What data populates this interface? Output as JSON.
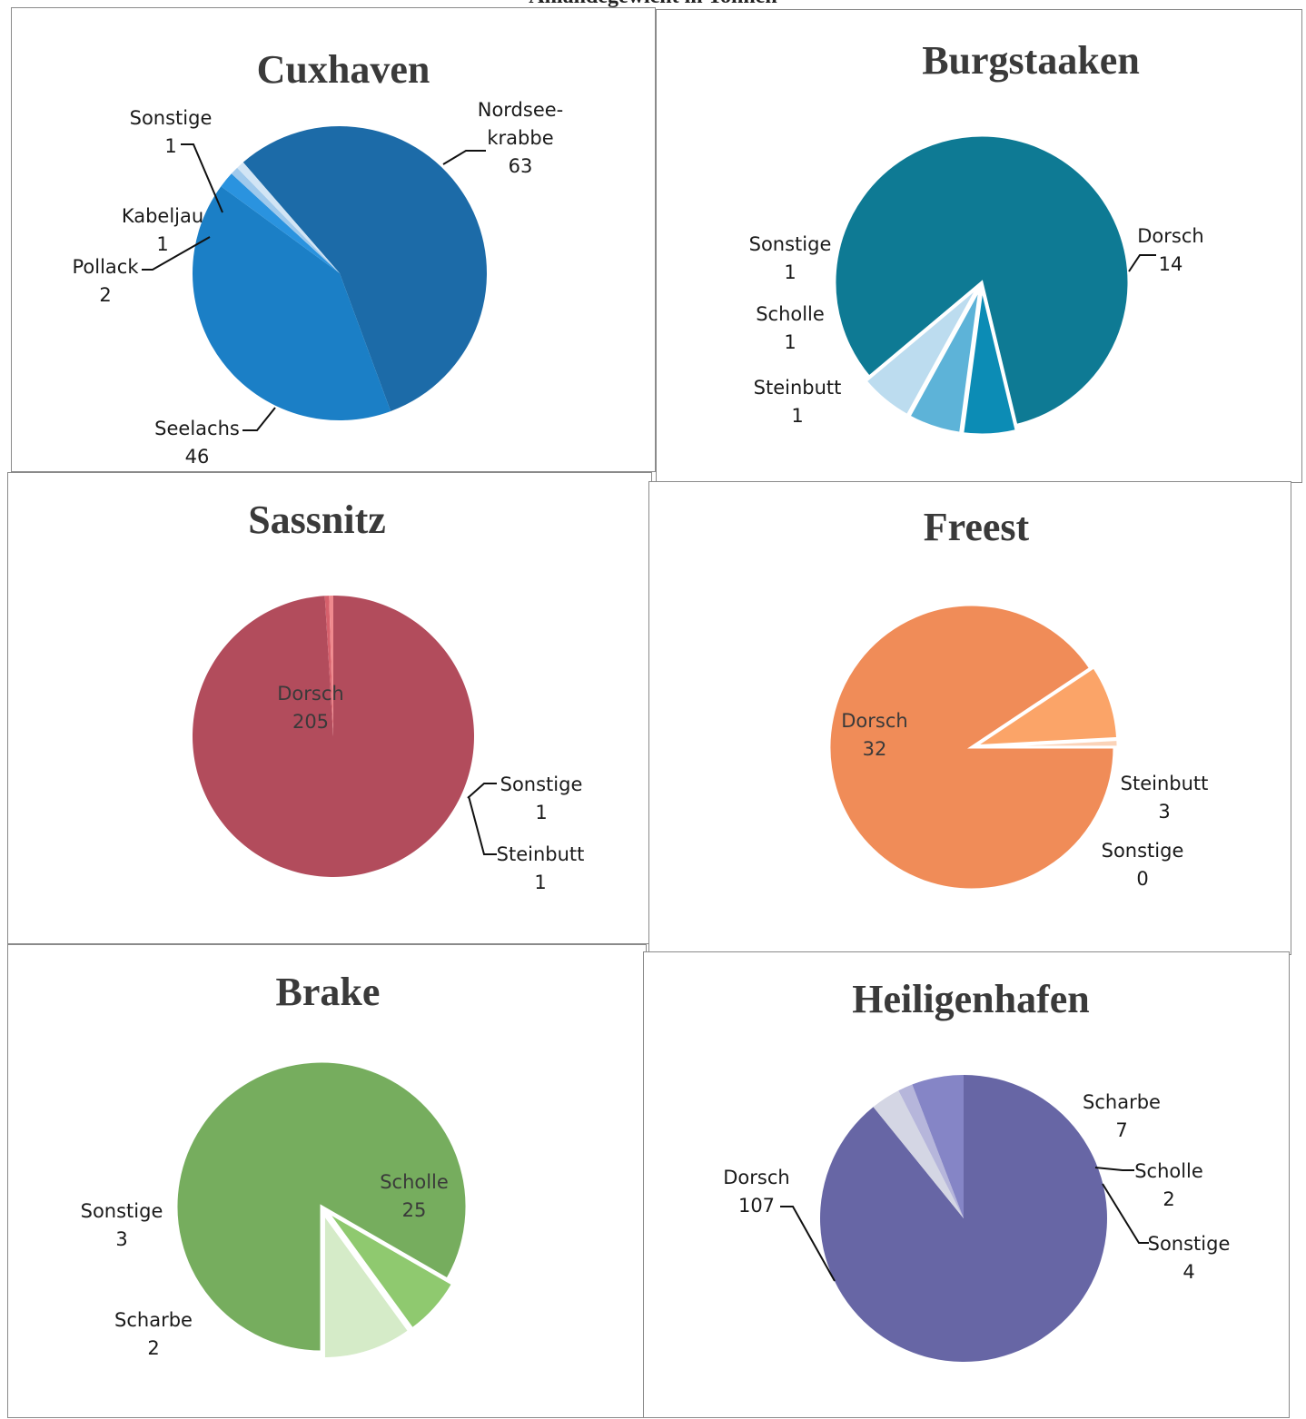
{
  "page_title": "Anlandegewicht in Tonnen",
  "chart_data": [
    {
      "type": "pie",
      "title": "Cuxhaven",
      "slices": [
        {
          "label": "Nordsee-\nkrabbe",
          "value": 63,
          "value_label": "63",
          "color": "#1C6BA8"
        },
        {
          "label": "Seelachs",
          "value": 46,
          "value_label": "46",
          "color": "#1B7FC6"
        },
        {
          "label": "Pollack",
          "value": 2,
          "value_label": "2",
          "color": "#2A93DF"
        },
        {
          "label": "Kabeljau",
          "value": 1,
          "value_label": "1",
          "color": "#9FC9EC"
        },
        {
          "label": "Sonstige",
          "value": 1,
          "value_label": "1",
          "color": "#D2E5F5"
        }
      ]
    },
    {
      "type": "pie",
      "title": "Burgstaaken",
      "slices": [
        {
          "label": "Dorsch",
          "value": 14,
          "value_label": "14",
          "color": "#0E7A94"
        },
        {
          "label": "Steinbutt",
          "value": 1,
          "value_label": "1",
          "color": "#0C8CB5"
        },
        {
          "label": "Scholle",
          "value": 1,
          "value_label": "1",
          "color": "#5DB3D8"
        },
        {
          "label": "Sonstige",
          "value": 1,
          "value_label": "1",
          "color": "#BCDCEF"
        }
      ]
    },
    {
      "type": "pie",
      "title": "Sassnitz",
      "slices": [
        {
          "label": "Dorsch",
          "value": 205,
          "value_label": "205",
          "color": "#B24C5C"
        },
        {
          "label": "Sonstige",
          "value": 1,
          "value_label": "1",
          "color": "#D6606C"
        },
        {
          "label": "Steinbutt",
          "value": 1,
          "value_label": "1",
          "color": "#F08A8E"
        }
      ]
    },
    {
      "type": "pie",
      "title": "Freest",
      "slices": [
        {
          "label": "Dorsch",
          "value": 32,
          "value_label": "32",
          "color": "#F08C58"
        },
        {
          "label": "Steinbutt",
          "value": 3,
          "value_label": "3",
          "color": "#FBA468"
        },
        {
          "label": "Sonstige",
          "value": 0.3,
          "value_label": "0",
          "color": "#FBD3B8"
        }
      ]
    },
    {
      "type": "pie",
      "title": "Brake",
      "slices": [
        {
          "label": "Scholle",
          "value": 25,
          "value_label": "25",
          "color": "#76AD5E"
        },
        {
          "label": "Scharbe",
          "value": 2,
          "value_label": "2",
          "color": "#8FC96F"
        },
        {
          "label": "Sonstige",
          "value": 3,
          "value_label": "3",
          "color": "#D5EBC8"
        }
      ]
    },
    {
      "type": "pie",
      "title": "Heiligenhafen",
      "slices": [
        {
          "label": "Dorsch",
          "value": 107,
          "value_label": "107",
          "color": "#6766A5"
        },
        {
          "label": "Sonstige",
          "value": 4,
          "value_label": "4",
          "color": "#D4D6E4"
        },
        {
          "label": "Scholle",
          "value": 2,
          "value_label": "2",
          "color": "#B6B6DB"
        },
        {
          "label": "Scharbe",
          "value": 7,
          "value_label": "7",
          "color": "#8585C6"
        }
      ]
    }
  ]
}
